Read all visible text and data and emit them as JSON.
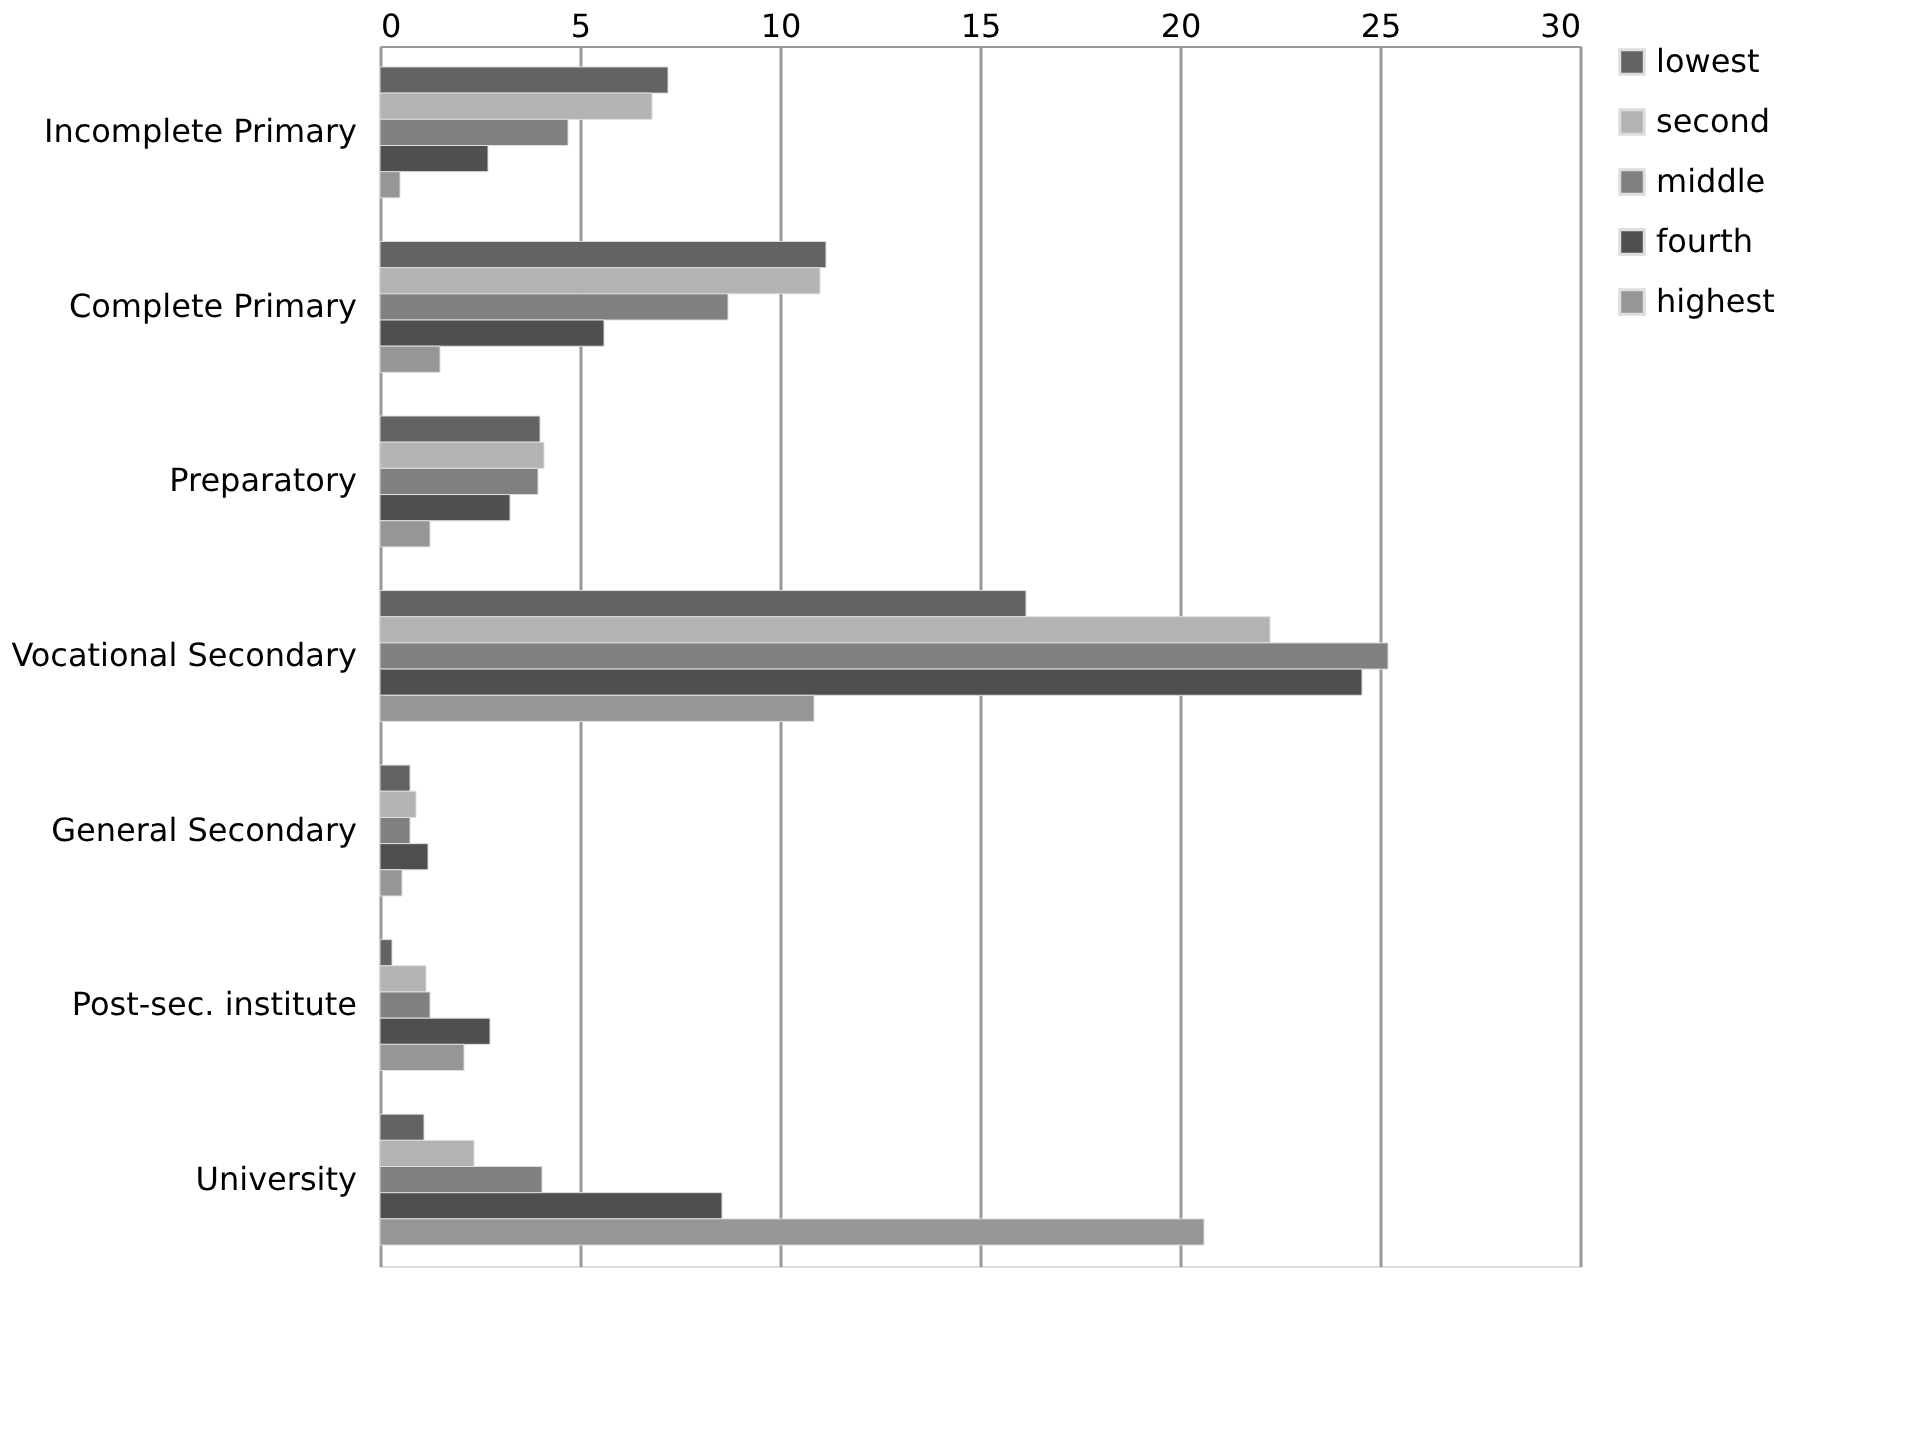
{
  "chart_data": {
    "type": "bar",
    "orientation": "horizontal",
    "categories": [
      "Incomplete Primary",
      "Complete Primary",
      "Preparatory",
      "Vocational Secondary",
      "General Secondary",
      "Post-sec. institute",
      "University"
    ],
    "series": [
      {
        "name": "lowest",
        "color": "#636363",
        "values": [
          7.2,
          11.15,
          4.0,
          16.15,
          0.75,
          0.3,
          1.1
        ]
      },
      {
        "name": "second",
        "color": "#b3b3b3",
        "values": [
          6.8,
          11.0,
          4.1,
          22.25,
          0.9,
          1.15,
          2.35
        ]
      },
      {
        "name": "middle",
        "color": "#808080",
        "values": [
          4.7,
          8.7,
          3.95,
          25.2,
          0.75,
          1.25,
          4.05
        ]
      },
      {
        "name": "fourth",
        "color": "#4f4f4f",
        "values": [
          2.7,
          5.6,
          3.25,
          24.55,
          1.2,
          2.75,
          8.55
        ]
      },
      {
        "name": "highest",
        "color": "#969696",
        "values": [
          0.5,
          1.5,
          1.25,
          10.85,
          0.55,
          2.1,
          20.6
        ]
      }
    ],
    "xlim": [
      0,
      30
    ],
    "xticks": [
      0,
      5,
      10,
      15,
      20,
      25,
      30
    ],
    "grid": "x",
    "legend": "right"
  }
}
